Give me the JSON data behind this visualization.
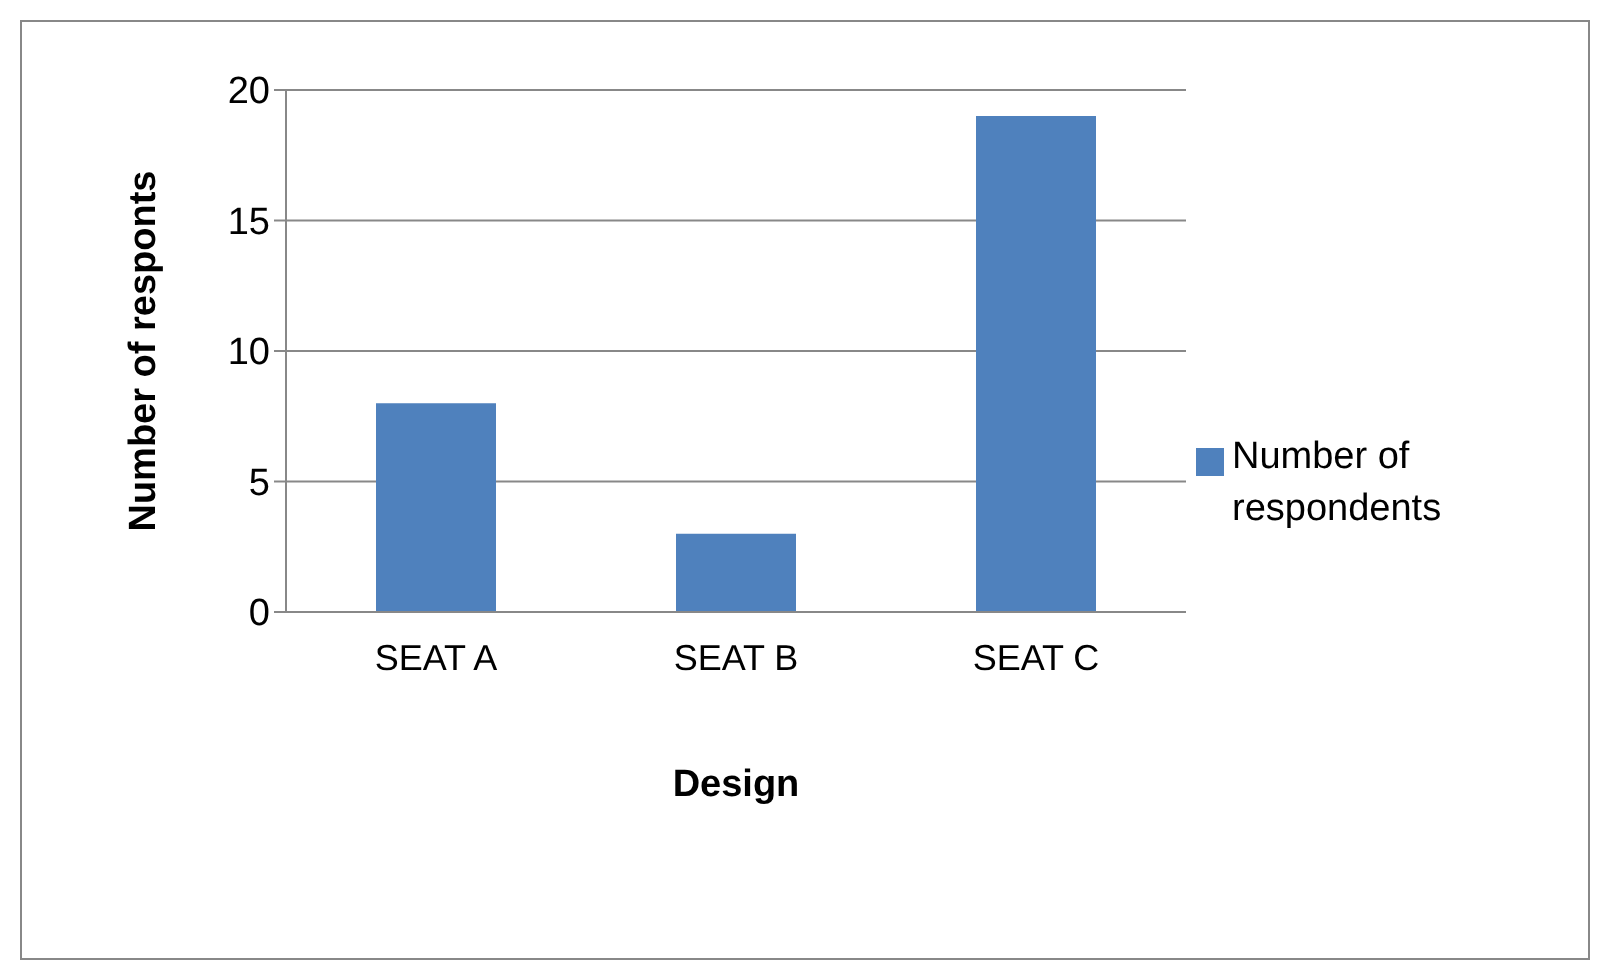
{
  "chart_data": {
    "type": "bar",
    "xlabel": "Design",
    "ylabel": "Number of responts",
    "categories": [
      "SEAT A",
      "SEAT B",
      "SEAT C"
    ],
    "series": [
      {
        "name": "Number of respondents",
        "color": "#4f81bd",
        "values": [
          8,
          3,
          19
        ]
      }
    ],
    "ylim": [
      0,
      20
    ],
    "yticks": [
      0,
      5,
      10,
      15,
      20
    ],
    "grid": "y",
    "legend": "right"
  }
}
